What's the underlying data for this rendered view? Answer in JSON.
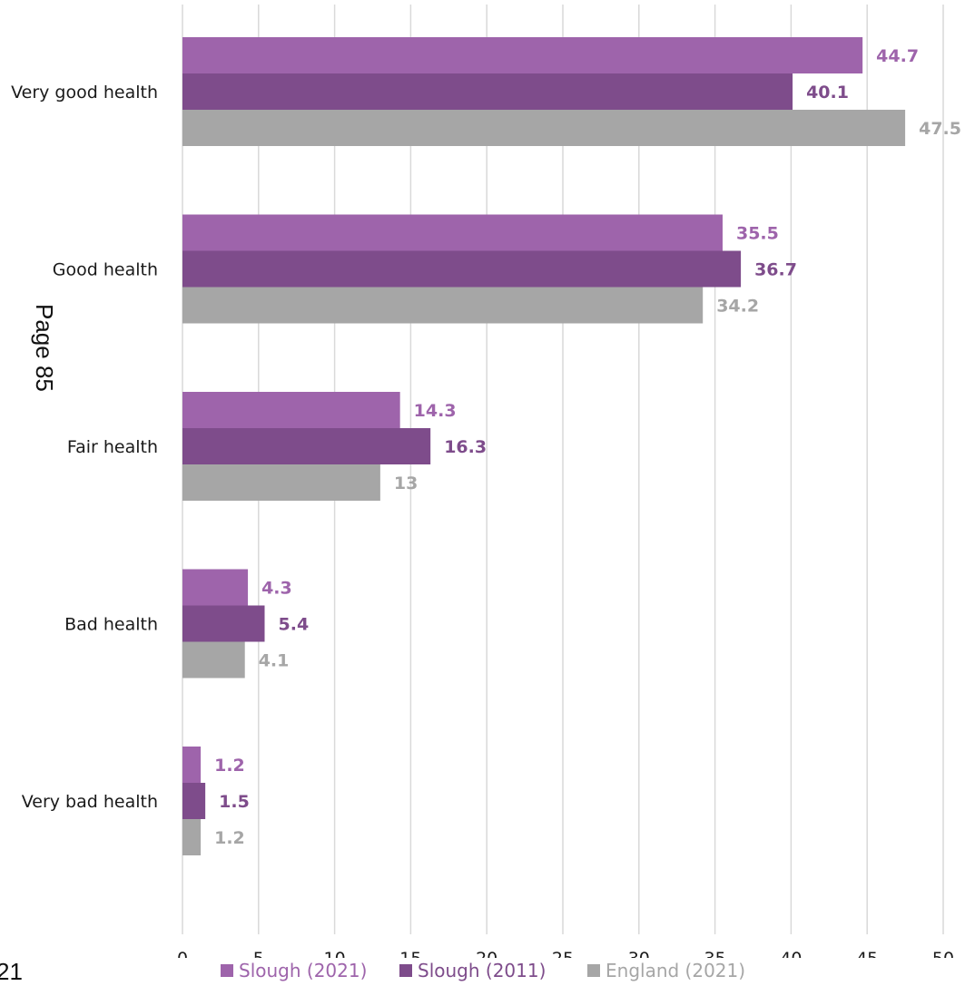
{
  "page": {
    "side_text": "Page 85",
    "page_fragment": "21"
  },
  "colors": {
    "slough_2021": "#9E64AB",
    "slough_2011": "#7E4C8B",
    "england_2021": "#A6A6A6",
    "gridline": "#D9D9D9"
  },
  "chart_data": {
    "type": "bar",
    "orientation": "horizontal",
    "categories": [
      "Very good health",
      "Good health",
      "Fair health",
      "Bad health",
      "Very bad health"
    ],
    "series": [
      {
        "name": "Slough (2021)",
        "values": [
          44.7,
          35.5,
          14.3,
          4.3,
          1.2
        ]
      },
      {
        "name": "Slough (2011)",
        "values": [
          40.1,
          36.7,
          16.3,
          5.4,
          1.5
        ]
      },
      {
        "name": "England (2021)",
        "values": [
          47.5,
          34.2,
          13,
          4.1,
          1.2
        ]
      }
    ],
    "xlim": [
      0,
      50
    ],
    "xticks": [
      0,
      5,
      10,
      15,
      20,
      25,
      30,
      35,
      40,
      45,
      50
    ],
    "grid": true,
    "legend_position": "bottom",
    "data_labels": true
  }
}
